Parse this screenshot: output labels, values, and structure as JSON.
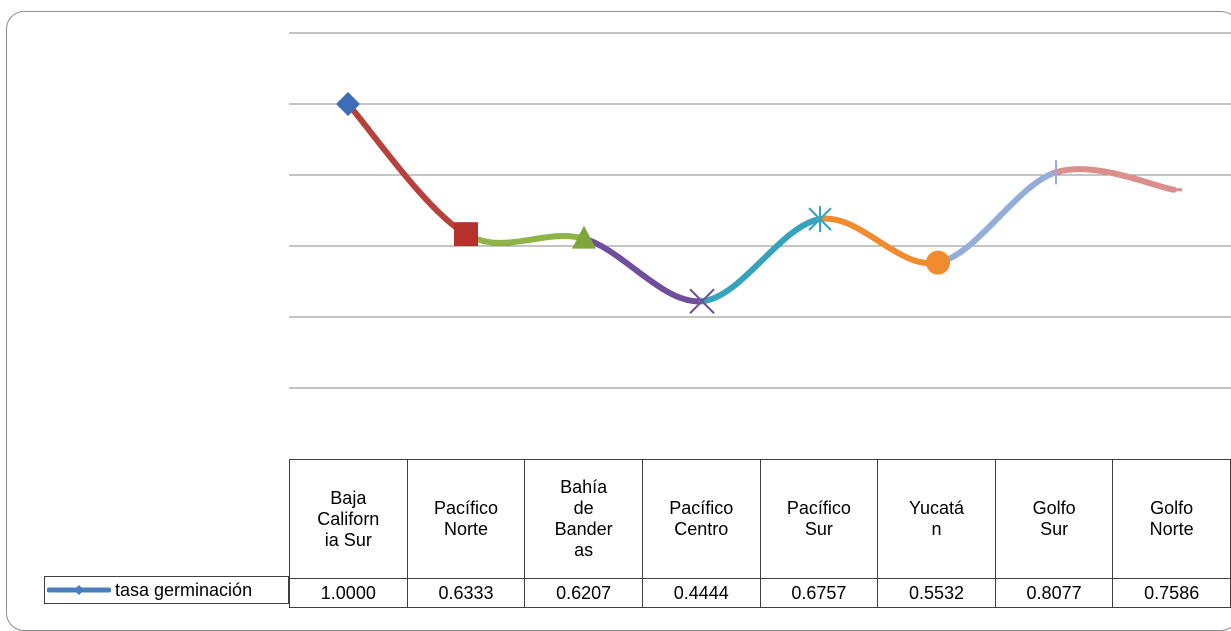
{
  "chart_data": {
    "type": "line",
    "smooth": true,
    "categories": [
      "Baja California Sur",
      "Pacífico Norte",
      "Bahía de Banderas",
      "Pacífico Centro",
      "Pacífico Sur",
      "Yucatán",
      "Golfo Sur",
      "Golfo Norte"
    ],
    "category_lines": [
      [
        "Baja",
        "Californ",
        "ia Sur"
      ],
      [
        "Pacífico",
        "Norte"
      ],
      [
        "Bahía",
        "de",
        "Bander",
        "as"
      ],
      [
        "Pacífico",
        "Centro"
      ],
      [
        "Pacífico",
        "Sur"
      ],
      [
        "Yucatá",
        "n"
      ],
      [
        "Golfo",
        "Sur"
      ],
      [
        "Golfo",
        "Norte"
      ]
    ],
    "series": [
      {
        "name": "tasa germinación",
        "values": [
          1.0,
          0.6333,
          0.6207,
          0.4444,
          0.6757,
          0.5532,
          0.8077,
          0.7586
        ],
        "value_labels": [
          "1.0000",
          "0.6333",
          "0.6207",
          "0.4444",
          "0.6757",
          "0.5532",
          "0.8077",
          "0.7586"
        ]
      }
    ],
    "ylim": [
      0,
      1.2
    ],
    "grid": true,
    "axis_labels_shown": false,
    "legend": "data-table",
    "title": "",
    "xlabel": "",
    "ylabel": "",
    "colors": {
      "legend_line": "#4a7ebb",
      "segments": [
        "#b7413b",
        "#8db444",
        "#6f4f9b",
        "#35a3bb",
        "#f08b2e",
        "#93aedb",
        "#dc8e8c"
      ],
      "markers": [
        "#3e6db5",
        "#b7312c",
        "#7fa63a",
        "#6f4f9b",
        "#35a3bb",
        "#f08b2e",
        "#93aedb",
        "#dc8e8c"
      ]
    },
    "marker_shapes": [
      "diamond",
      "square",
      "triangle",
      "x",
      "star",
      "circle",
      "plus",
      "dash"
    ]
  }
}
